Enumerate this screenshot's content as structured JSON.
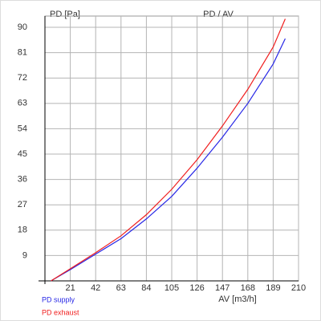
{
  "chart_data": {
    "type": "line",
    "title": "PD / AV",
    "y_label": "PD [Pa]",
    "x_label": "AV [m3/h]",
    "x": [
      5,
      21,
      42,
      63,
      84,
      105,
      126,
      147,
      168,
      189,
      199
    ],
    "series": [
      {
        "name": "PD supply",
        "color": "#2828e6",
        "values": [
          0,
          4,
          9.5,
          15,
          22,
          30,
          40,
          51,
          63,
          77,
          86
        ]
      },
      {
        "name": "PD exhaust",
        "color": "#f01e1e",
        "values": [
          0,
          4.3,
          10,
          16,
          23.5,
          32.5,
          43,
          55,
          68,
          83,
          93
        ]
      }
    ],
    "xlim": [
      0,
      210
    ],
    "ylim": [
      0,
      94
    ],
    "xticks": [
      21,
      42,
      63,
      84,
      105,
      126,
      147,
      168,
      189,
      210
    ],
    "yticks": [
      9,
      18,
      27,
      36,
      45,
      54,
      63,
      72,
      81,
      90
    ],
    "grid": true
  }
}
